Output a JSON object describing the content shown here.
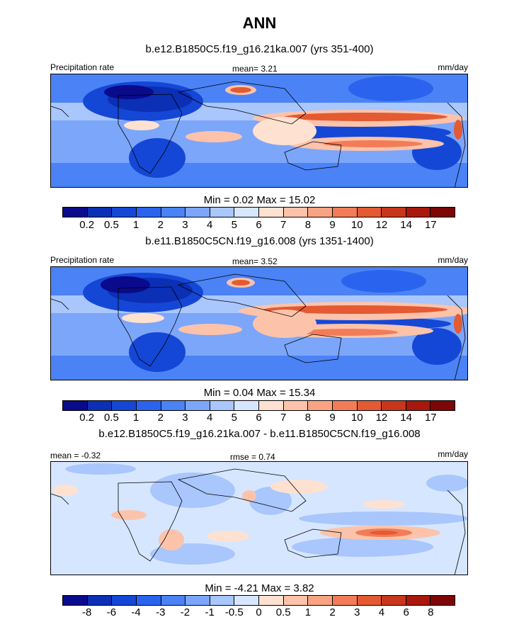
{
  "figure_title": "ANN",
  "panels": [
    {
      "title": "b.e12.B1850C5.f19_g16.21ka.007 (yrs 351-400)",
      "left_label": "Precipitation rate",
      "center_label": "mean=   3.21",
      "right_label": "mm/day",
      "stats": "Min =   0.02 Max =  15.02"
    },
    {
      "title": "b.e11.B1850C5CN.f19_g16.008 (yrs 1351-1400)",
      "left_label": "Precipitation rate",
      "center_label": "mean=   3.52",
      "right_label": "mm/day",
      "stats": "Min =   0.04 Max =  15.34"
    },
    {
      "title": "b.e12.B1850C5.f19_g16.21ka.007 - b.e11.B1850C5CN.f19_g16.008",
      "left_label": "mean =  -0.32",
      "center_label": "rmse =   0.74",
      "right_label": "mm/day",
      "stats": "Min =  -4.21 Max =   3.82"
    }
  ],
  "chart_data": [
    {
      "type": "heatmap",
      "title": "b.e12.B1850C5.f19_g16.21ka.007 (yrs 351-400)",
      "variable": "Precipitation rate",
      "units": "mm/day",
      "mean": 3.21,
      "min": 0.02,
      "max": 15.02,
      "colorbar_levels": [
        "0.2",
        "0.5",
        "1",
        "2",
        "3",
        "4",
        "5",
        "6",
        "7",
        "8",
        "9",
        "10",
        "12",
        "14",
        "17"
      ],
      "colors": [
        "#0a0a8c",
        "#0b2fb5",
        "#1547d6",
        "#2a64ee",
        "#4b82f5",
        "#7ca6fa",
        "#a9c6fd",
        "#d6e6ff",
        "#ffe1d1",
        "#fcc3aa",
        "#f9a383",
        "#f37c58",
        "#e45a33",
        "#c8361c",
        "#a8180c",
        "#7d0606"
      ]
    },
    {
      "type": "heatmap",
      "title": "b.e11.B1850C5CN.f19_g16.008 (yrs 1351-1400)",
      "variable": "Precipitation rate",
      "units": "mm/day",
      "mean": 3.52,
      "min": 0.04,
      "max": 15.34,
      "colorbar_levels": [
        "0.2",
        "0.5",
        "1",
        "2",
        "3",
        "4",
        "5",
        "6",
        "7",
        "8",
        "9",
        "10",
        "12",
        "14",
        "17"
      ],
      "colors": [
        "#0a0a8c",
        "#0b2fb5",
        "#1547d6",
        "#2a64ee",
        "#4b82f5",
        "#7ca6fa",
        "#a9c6fd",
        "#d6e6ff",
        "#ffe1d1",
        "#fcc3aa",
        "#f9a383",
        "#f37c58",
        "#e45a33",
        "#c8361c",
        "#a8180c",
        "#7d0606"
      ]
    },
    {
      "type": "heatmap",
      "title": "b.e12.B1850C5.f19_g16.21ka.007 - b.e11.B1850C5CN.f19_g16.008",
      "units": "mm/day",
      "mean": -0.32,
      "rmse": 0.74,
      "min": -4.21,
      "max": 3.82,
      "colorbar_levels": [
        "-8",
        "-6",
        "-4",
        "-3",
        "-2",
        "-1",
        "-0.5",
        "0",
        "0.5",
        "1",
        "2",
        "3",
        "4",
        "6",
        "8"
      ],
      "colors": [
        "#0a0a8c",
        "#0b2fb5",
        "#1547d6",
        "#2a64ee",
        "#4b82f5",
        "#7ca6fa",
        "#a9c6fd",
        "#d6e6ff",
        "#ffe1d1",
        "#fcc3aa",
        "#f9a383",
        "#f37c58",
        "#e45a33",
        "#c8361c",
        "#a8180c",
        "#7d0606"
      ]
    }
  ]
}
